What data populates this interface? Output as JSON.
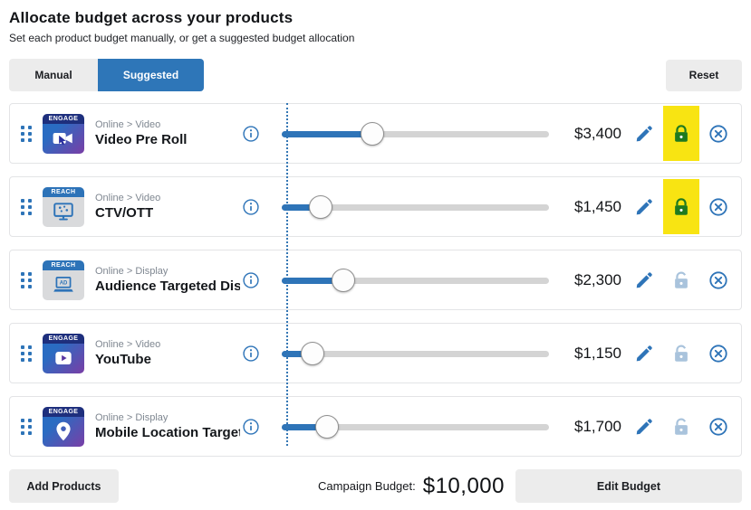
{
  "header": {
    "title": "Allocate budget across your products",
    "subtitle": "Set each product budget manually, or get a suggested budget allocation"
  },
  "tabs": {
    "manual_label": "Manual",
    "suggested_label": "Suggested",
    "active": "Suggested"
  },
  "reset_label": "Reset",
  "products": [
    {
      "badge": "ENGAGE",
      "icon": "video-preroll-icon",
      "style": "gradient",
      "category": "Online > Video",
      "name": "Video Pre Roll",
      "value": "$3,400",
      "percent": 34,
      "locked": true,
      "highlighted": true
    },
    {
      "badge": "REACH",
      "icon": "ctv-ott-icon",
      "style": "gray",
      "category": "Online > Video",
      "name": "CTV/OTT",
      "value": "$1,450",
      "percent": 14.5,
      "locked": true,
      "highlighted": true
    },
    {
      "badge": "REACH",
      "icon": "display-ad-icon",
      "style": "gray",
      "category": "Online > Display",
      "name": "Audience Targeted Dis…",
      "value": "$2,300",
      "percent": 23,
      "locked": false,
      "highlighted": false
    },
    {
      "badge": "ENGAGE",
      "icon": "youtube-icon",
      "style": "gradient",
      "category": "Online > Video",
      "name": "YouTube",
      "value": "$1,150",
      "percent": 11.5,
      "locked": false,
      "highlighted": false
    },
    {
      "badge": "ENGAGE",
      "icon": "location-pin-icon",
      "style": "gradient",
      "category": "Online > Display",
      "name": "Mobile Location Target…",
      "value": "$1,700",
      "percent": 17,
      "locked": false,
      "highlighted": false
    }
  ],
  "footer": {
    "add_products_label": "Add Products",
    "campaign_budget_label": "Campaign Budget:",
    "campaign_budget_value": "$10,000",
    "edit_budget_label": "Edit Budget"
  },
  "colors": {
    "accent_blue": "#2e76b8",
    "lock_green": "#1f7a1f",
    "unlocked_gray_blue": "#a9c3dc",
    "highlight_yellow": "#f8e412",
    "track_gray": "#d4d4d4"
  }
}
